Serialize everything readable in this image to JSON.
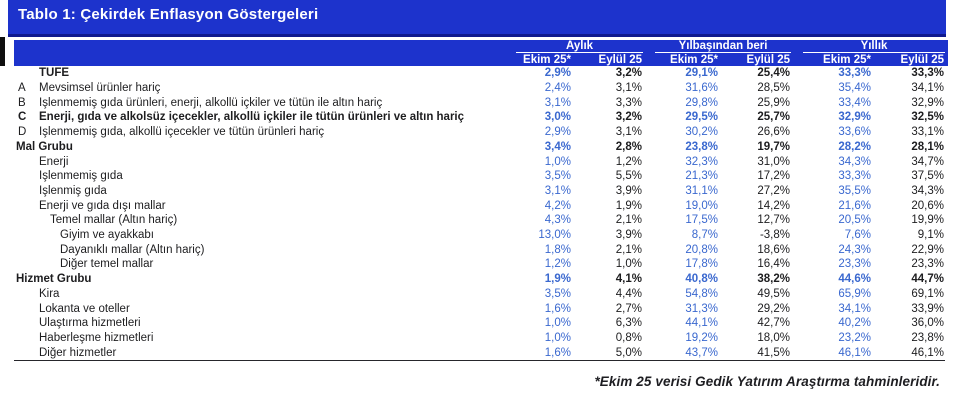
{
  "title": "Tablo 1: Çekirdek Enflasyon Göstergeleri",
  "colors": {
    "header_blue": "#1d33cc",
    "title_border": "#101a8e",
    "accent_text_blue": "#3a68cf",
    "ink": "#1d1d1f",
    "rule": "#26262b",
    "notch": "#0f0f0f"
  },
  "table": {
    "groups": [
      {
        "label": "Aylık"
      },
      {
        "label": "Yılbaşından beri"
      },
      {
        "label": "Yıllık"
      }
    ],
    "subheaders": [
      "Ekim 25*",
      "Eylül 25",
      "Ekim 25*",
      "Eylül 25",
      "Ekim 25*",
      "Eylül 25"
    ],
    "rows": [
      {
        "letter": "",
        "label": "TÜFE",
        "indent": 1,
        "bold": true,
        "values": [
          "2,9%",
          "3,2%",
          "29,1%",
          "25,4%",
          "33,3%",
          "33,3%"
        ]
      },
      {
        "letter": "A",
        "label": "Mevsimsel ürünler hariç",
        "indent": 1,
        "bold": false,
        "values": [
          "2,4%",
          "3,1%",
          "31,6%",
          "28,5%",
          "35,4%",
          "34,1%"
        ]
      },
      {
        "letter": "B",
        "label": "İşlenmemiş gıda ürünleri, enerji, alkollü içkiler ve tütün ile altın hariç",
        "indent": 1,
        "bold": false,
        "values": [
          "3,1%",
          "3,3%",
          "29,8%",
          "25,9%",
          "33,4%",
          "32,9%"
        ]
      },
      {
        "letter": "C",
        "label": "Enerji, gıda ve alkolsüz içecekler, alkollü içkiler ile tütün ürünleri ve altın hariç",
        "indent": 1,
        "bold": true,
        "values": [
          "3,0%",
          "3,2%",
          "29,5%",
          "25,7%",
          "32,9%",
          "32,5%"
        ]
      },
      {
        "letter": "D",
        "label": "İşlenmemiş gıda, alkollü içecekler ve tütün ürünleri hariç",
        "indent": 1,
        "bold": false,
        "values": [
          "2,9%",
          "3,1%",
          "30,2%",
          "26,6%",
          "33,6%",
          "33,1%"
        ]
      },
      {
        "letter": "",
        "label": "Mal Grubu",
        "indent": 0,
        "bold": true,
        "values": [
          "3,4%",
          "2,8%",
          "23,8%",
          "19,7%",
          "28,2%",
          "28,1%"
        ]
      },
      {
        "letter": "",
        "label": "Enerji",
        "indent": 1,
        "bold": false,
        "values": [
          "1,0%",
          "1,2%",
          "32,3%",
          "31,0%",
          "34,3%",
          "34,7%"
        ]
      },
      {
        "letter": "",
        "label": "İşlenmemiş gıda",
        "indent": 1,
        "bold": false,
        "values": [
          "3,5%",
          "5,5%",
          "21,3%",
          "17,2%",
          "33,3%",
          "37,5%"
        ]
      },
      {
        "letter": "",
        "label": "İşlenmiş gıda",
        "indent": 1,
        "bold": false,
        "values": [
          "3,1%",
          "3,9%",
          "31,1%",
          "27,2%",
          "35,5%",
          "34,3%"
        ]
      },
      {
        "letter": "",
        "label": "Enerji ve gıda dışı mallar",
        "indent": 1,
        "bold": false,
        "values": [
          "4,2%",
          "1,9%",
          "19,0%",
          "14,2%",
          "21,6%",
          "20,6%"
        ]
      },
      {
        "letter": "",
        "label": "Temel mallar (Altın hariç)",
        "indent": 2,
        "bold": false,
        "values": [
          "4,3%",
          "2,1%",
          "17,5%",
          "12,7%",
          "20,5%",
          "19,9%"
        ]
      },
      {
        "letter": "",
        "label": "Giyim ve ayakkabı",
        "indent": 3,
        "bold": false,
        "values": [
          "13,0%",
          "3,9%",
          "8,7%",
          "-3,8%",
          "7,6%",
          "9,1%"
        ]
      },
      {
        "letter": "",
        "label": "Dayanıklı mallar (Altın hariç)",
        "indent": 3,
        "bold": false,
        "values": [
          "1,8%",
          "2,1%",
          "20,8%",
          "18,6%",
          "24,3%",
          "22,9%"
        ]
      },
      {
        "letter": "",
        "label": "Diğer temel mallar",
        "indent": 3,
        "bold": false,
        "values": [
          "1,2%",
          "1,0%",
          "17,8%",
          "16,4%",
          "23,3%",
          "23,3%"
        ]
      },
      {
        "letter": "",
        "label": "Hizmet Grubu",
        "indent": 0,
        "bold": true,
        "values": [
          "1,9%",
          "4,1%",
          "40,8%",
          "38,2%",
          "44,6%",
          "44,7%"
        ]
      },
      {
        "letter": "",
        "label": "Kira",
        "indent": 1,
        "bold": false,
        "values": [
          "3,5%",
          "4,4%",
          "54,8%",
          "49,5%",
          "65,9%",
          "69,1%"
        ]
      },
      {
        "letter": "",
        "label": "Lokanta ve oteller",
        "indent": 1,
        "bold": false,
        "values": [
          "1,6%",
          "2,7%",
          "31,3%",
          "29,2%",
          "34,1%",
          "33,9%"
        ]
      },
      {
        "letter": "",
        "label": "Ulaştırma hizmetleri",
        "indent": 1,
        "bold": false,
        "values": [
          "1,0%",
          "6,3%",
          "44,1%",
          "42,7%",
          "40,2%",
          "36,0%"
        ]
      },
      {
        "letter": "",
        "label": "Haberleşme hizmetleri",
        "indent": 1,
        "bold": false,
        "values": [
          "1,0%",
          "0,8%",
          "19,2%",
          "18,0%",
          "23,2%",
          "23,8%"
        ]
      },
      {
        "letter": "",
        "label": "Diğer hizmetler",
        "indent": 1,
        "bold": false,
        "values": [
          "1,6%",
          "5,0%",
          "43,7%",
          "41,5%",
          "46,1%",
          "46,1%"
        ]
      }
    ]
  },
  "footnote": "*Ekim 25 verisi Gedik Yatırım Araştırma tahminleridir."
}
